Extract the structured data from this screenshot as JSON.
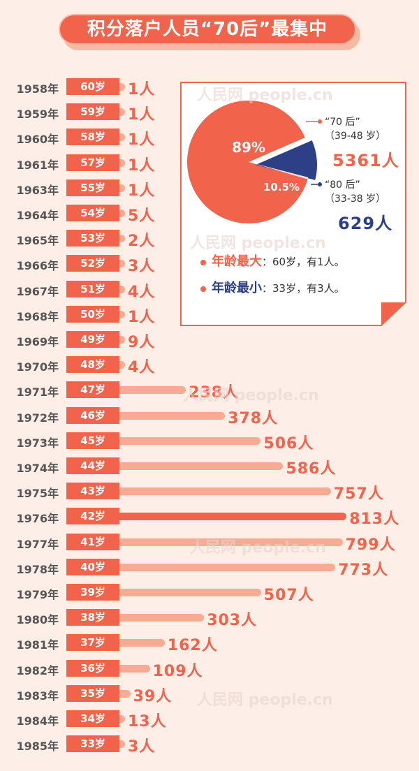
{
  "title": "积分落户人员“70后”最集中",
  "watermark": "人民网 people.cn",
  "chart_data": [
    {
      "type": "bar",
      "orientation": "horizontal",
      "unit": "人",
      "categories": [
        "1958年",
        "1959年",
        "1960年",
        "1961年",
        "1963年",
        "1964年",
        "1965年",
        "1966年",
        "1967年",
        "1968年",
        "1969年",
        "1970年",
        "1971年",
        "1972年",
        "1973年",
        "1974年",
        "1975年",
        "1976年",
        "1977年",
        "1978年",
        "1979年",
        "1980年",
        "1981年",
        "1982年",
        "1983年",
        "1984年",
        "1985年"
      ],
      "ages": [
        "60岁",
        "59岁",
        "58岁",
        "57岁",
        "55岁",
        "54岁",
        "53岁",
        "52岁",
        "51岁",
        "50岁",
        "49岁",
        "48岁",
        "47岁",
        "46岁",
        "45岁",
        "44岁",
        "43岁",
        "42岁",
        "41岁",
        "40岁",
        "39岁",
        "38岁",
        "37岁",
        "36岁",
        "35岁",
        "34岁",
        "33岁"
      ],
      "values": [
        1,
        1,
        1,
        1,
        1,
        5,
        2,
        3,
        4,
        1,
        9,
        4,
        238,
        378,
        506,
        586,
        757,
        813,
        799,
        773,
        507,
        303,
        162,
        109,
        39,
        13,
        3
      ],
      "value_labels": [
        "1人",
        "1人",
        "1人",
        "1人",
        "1人",
        "5人",
        "2人",
        "3人",
        "4人",
        "1人",
        "9人",
        "4人",
        "238人",
        "378人",
        "506人",
        "586人",
        "757人",
        "813人",
        "799人",
        "773人",
        "507人",
        "303人",
        "162人",
        "109人",
        "39人",
        "13人",
        "3人"
      ],
      "highlight": "1976年",
      "colors": {
        "bar": "#f7ab93",
        "highlight": "#f2634b",
        "age_box": "#f2634b"
      }
    },
    {
      "type": "pie",
      "slices": [
        {
          "name": "“70 后”",
          "range": "（39-48 岁）",
          "percent": 89,
          "label": "89%",
          "count": "5361人",
          "color": "#f2634b"
        },
        {
          "name": "“80 后”",
          "range": "（33-38 岁）",
          "percent": 10.5,
          "label": "10.5%",
          "count": "629人",
          "color": "#2c3f87"
        }
      ],
      "other_color": "#e8e4dc"
    }
  ],
  "notes": [
    {
      "key": "年龄最大",
      "text": "：60岁，有1人。",
      "color": "#f2634b"
    },
    {
      "key": "年龄最小",
      "text": "：33岁，有3人。",
      "color": "#2c3f87"
    }
  ]
}
